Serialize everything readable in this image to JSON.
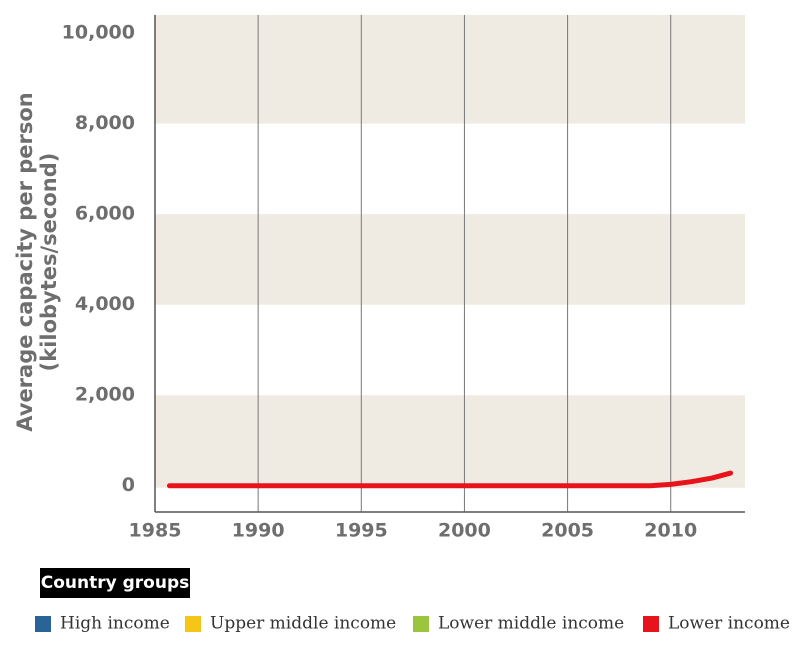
{
  "chart_data": {
    "type": "line",
    "ylabel": [
      "Average capacity per person",
      "(kilobytes/second)"
    ],
    "x": [
      1985.7,
      2009,
      2010,
      2011,
      2012,
      2012.9
    ],
    "series": [
      {
        "name": "Lower income",
        "color": "#e8141b",
        "values": [
          0,
          0,
          30,
          90,
          170,
          280
        ]
      }
    ],
    "legend": {
      "title": "Country groups",
      "items": [
        {
          "name": "High income",
          "color": "#2a6496"
        },
        {
          "name": "Upper middle income",
          "color": "#f5c518"
        },
        {
          "name": "Lower middle income",
          "color": "#9bc53d"
        },
        {
          "name": "Lower income",
          "color": "#e8141b"
        }
      ]
    },
    "xlim": [
      1985,
      2013.6
    ],
    "xticks": [
      1985,
      1990,
      1995,
      2000,
      2005,
      2010
    ],
    "ylim": [
      -580,
      10400
    ],
    "yticks": [
      0,
      {
        "value": 2000,
        "label": "2,000"
      },
      {
        "value": 4000,
        "label": "4,000"
      },
      {
        "value": 6000,
        "label": "6,000"
      },
      {
        "value": 8000,
        "label": "8,000"
      },
      {
        "value": 10000,
        "label": "10,000"
      }
    ],
    "band_color": "#efebe2",
    "grid": true
  }
}
